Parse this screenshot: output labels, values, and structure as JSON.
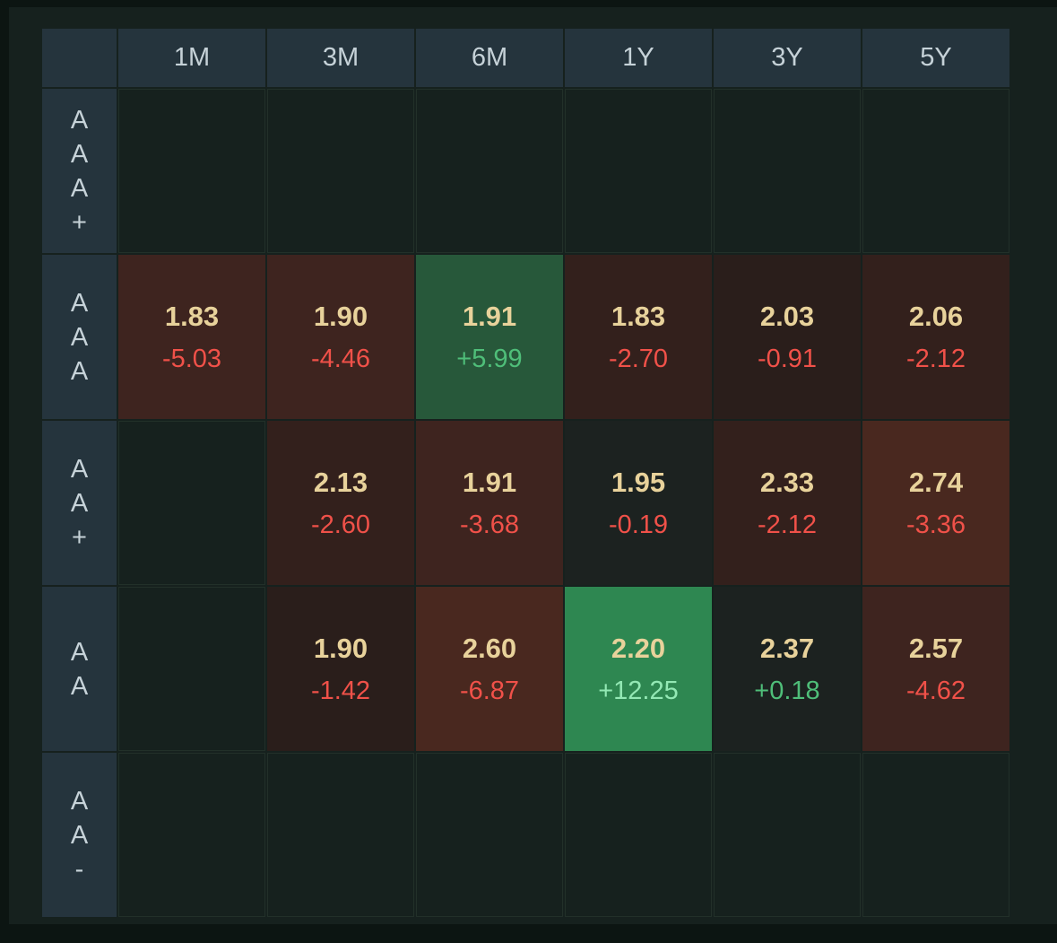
{
  "palette": {
    "frame_bg": "#0c1512",
    "page_bg": "#16211e",
    "grid_line": "#223029",
    "header_bg": "#25343d",
    "header_text": "#c6d2d8",
    "value_text": "#e8d29b",
    "neg_text": "#f05149",
    "pos_text": "#4fbe79",
    "pos_text_bright": "#93e8b4",
    "red1": "#2a1e1b",
    "red2": "#33201c",
    "red3": "#3e241f",
    "red4": "#49281f",
    "green_dark": "#27583a",
    "green_bright": "#2e8751",
    "neutral": "#1c2220"
  },
  "chart_data": {
    "type": "heatmap",
    "x_labels": [
      "1M",
      "3M",
      "6M",
      "1Y",
      "3Y",
      "5Y"
    ],
    "y_labels": [
      "AAA+",
      "AAA",
      "AA+",
      "AA",
      "AA-"
    ],
    "legend": "each cell: rate value (top) and change (bottom); cell background tone encodes change direction/magnitude",
    "cells": [
      [
        null,
        null,
        null,
        null,
        null,
        null
      ],
      [
        {
          "value": "1.83",
          "change": "-5.03",
          "tone": "red3"
        },
        {
          "value": "1.90",
          "change": "-4.46",
          "tone": "red3"
        },
        {
          "value": "1.91",
          "change": "+5.99",
          "tone": "green_dark"
        },
        {
          "value": "1.83",
          "change": "-2.70",
          "tone": "red2"
        },
        {
          "value": "2.03",
          "change": "-0.91",
          "tone": "red1"
        },
        {
          "value": "2.06",
          "change": "-2.12",
          "tone": "red2"
        }
      ],
      [
        null,
        {
          "value": "2.13",
          "change": "-2.60",
          "tone": "red2"
        },
        {
          "value": "1.91",
          "change": "-3.68",
          "tone": "red3"
        },
        {
          "value": "1.95",
          "change": "-0.19",
          "tone": "neutral"
        },
        {
          "value": "2.33",
          "change": "-2.12",
          "tone": "red2"
        },
        {
          "value": "2.74",
          "change": "-3.36",
          "tone": "red4"
        }
      ],
      [
        null,
        {
          "value": "1.90",
          "change": "-1.42",
          "tone": "red1"
        },
        {
          "value": "2.60",
          "change": "-6.87",
          "tone": "red4"
        },
        {
          "value": "2.20",
          "change": "+12.25",
          "tone": "green_bright"
        },
        {
          "value": "2.37",
          "change": "+0.18",
          "tone": "neutral"
        },
        {
          "value": "2.57",
          "change": "-4.62",
          "tone": "red3"
        }
      ],
      [
        null,
        null,
        null,
        null,
        null,
        null
      ]
    ]
  }
}
